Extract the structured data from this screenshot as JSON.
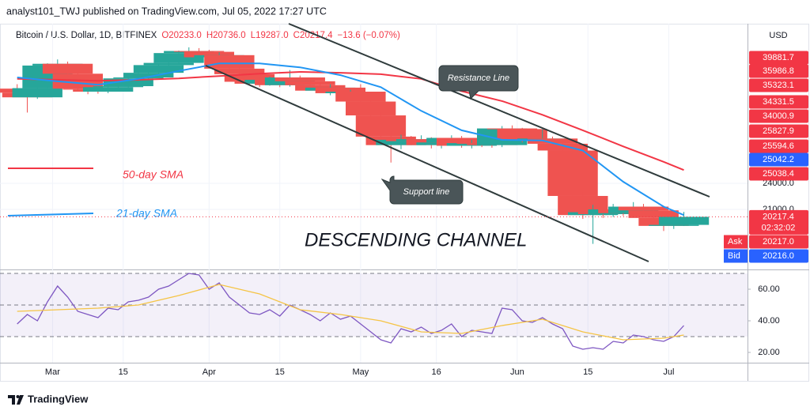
{
  "header": {
    "publisher": "analyst101_TWJ published on TradingView.com, Jul 05, 2022 17:27 UTC"
  },
  "chart_data": [
    {
      "type": "candlestick",
      "title": "Bitcoin / U.S. Dollar, 1D, BITFINEX",
      "ohlc_legend": [
        "O20233.0",
        "H20736.0",
        "L19287.0",
        "C20217.4",
        "−13.6 (−0.07%)"
      ],
      "ylabel": "USD",
      "log_scale": true,
      "xlim": [
        -1.7,
        72.3
      ],
      "ylim": [
        15500,
        54400
      ],
      "yticks": [
        {
          "value": 24000,
          "label": "24000.0"
        },
        {
          "value": 21000,
          "label": "21000.0"
        }
      ],
      "up_color": "#26a69a",
      "down_color": "#ef5350",
      "open": [
        39000,
        38200,
        37300,
        39100,
        43900,
        44300,
        42100,
        39000,
        38800,
        38400,
        39300,
        39500,
        41100,
        41300,
        42300,
        44000,
        44500,
        46800,
        47300,
        47100,
        45800,
        46300,
        43200,
        42000,
        40400,
        40000,
        40800,
        39700,
        41300,
        40500,
        39700,
        38600,
        39200,
        38100,
        38400,
        36500,
        34000,
        30500,
        29200,
        30000,
        29800,
        30100,
        29200,
        29600,
        30300,
        29100,
        29500,
        29400,
        29200,
        31800,
        31700,
        30100,
        29900,
        30200,
        29400,
        28400,
        22500,
        20400,
        20700,
        20500,
        21000,
        20600,
        21300,
        20900,
        20100,
        19300,
        19400
      ],
      "high": [
        39900,
        38900,
        39800,
        44400,
        45300,
        44800,
        42500,
        39500,
        39700,
        40000,
        40200,
        41600,
        42400,
        42800,
        44300,
        44900,
        47400,
        48200,
        48000,
        47600,
        47000,
        46700,
        43500,
        42400,
        41500,
        41500,
        41300,
        42900,
        41700,
        40900,
        40100,
        39900,
        39500,
        38800,
        39900,
        36800,
        34500,
        31300,
        30800,
        30600,
        30700,
        30400,
        30200,
        30700,
        30600,
        30000,
        29900,
        29800,
        32200,
        32300,
        31900,
        30600,
        31700,
        30500,
        30000,
        28800,
        23000,
        21500,
        21100,
        21600,
        21300,
        21800,
        21600,
        21200,
        20300,
        20200,
        20736
      ],
      "low": [
        37500,
        34500,
        37000,
        38700,
        43400,
        41500,
        38600,
        37900,
        38000,
        38100,
        38700,
        38900,
        40600,
        40900,
        41900,
        43600,
        44200,
        46500,
        46700,
        45200,
        45400,
        42800,
        41600,
        39800,
        39300,
        39600,
        39300,
        39400,
        40000,
        39200,
        38200,
        37700,
        37600,
        37600,
        35800,
        33700,
        29800,
        26700,
        28600,
        29200,
        29400,
        28700,
        28700,
        29300,
        28800,
        28700,
        28900,
        28800,
        28900,
        31300,
        29600,
        29500,
        29500,
        28900,
        27800,
        22100,
        20000,
        17600,
        20100,
        20200,
        20300,
        20400,
        20500,
        19800,
        18800,
        19000,
        19287
      ],
      "close": [
        38200,
        37300,
        39100,
        43900,
        44300,
        42100,
        39000,
        38800,
        38400,
        39300,
        39500,
        41100,
        41300,
        42300,
        44000,
        44500,
        46800,
        47300,
        47100,
        45800,
        46300,
        43200,
        42000,
        40400,
        40000,
        40800,
        39700,
        41300,
        40500,
        39700,
        38600,
        39200,
        38100,
        38400,
        36500,
        34000,
        30500,
        29200,
        30000,
        29800,
        30100,
        29200,
        29600,
        30300,
        29100,
        29500,
        29400,
        29200,
        31800,
        31700,
        30100,
        29900,
        30200,
        29400,
        28400,
        22500,
        20400,
        20700,
        20500,
        21000,
        20600,
        21300,
        20900,
        20100,
        19300,
        19400,
        20217.4
      ],
      "series": [
        {
          "name": "50-day SMA",
          "color": "#f23645",
          "x": [
            0,
            4,
            8,
            12,
            16,
            20,
            24,
            28,
            32,
            36,
            40,
            44,
            48,
            52,
            56,
            60,
            64,
            66
          ],
          "values": [
            41000,
            40800,
            40600,
            40800,
            41100,
            41600,
            42100,
            42500,
            42300,
            42000,
            41000,
            38500,
            36600,
            34100,
            31500,
            29000,
            26800,
            25700
          ]
        },
        {
          "name": "21-day SMA",
          "color": "#2196f3",
          "x": [
            0,
            4,
            8,
            12,
            16,
            20,
            24,
            28,
            32,
            36,
            40,
            44,
            48,
            52,
            56,
            60,
            64,
            66
          ],
          "values": [
            41300,
            40500,
            39800,
            41000,
            42700,
            44400,
            44400,
            43500,
            41800,
            39300,
            34800,
            31500,
            30000,
            29900,
            28400,
            24200,
            21300,
            20400
          ]
        }
      ],
      "price_tags": [
        {
          "label": "39881.7",
          "color": "#f23645"
        },
        {
          "label": "35986.8",
          "color": "#f23645"
        },
        {
          "label": "35323.1",
          "color": "#f23645"
        },
        {
          "label": "34331.5",
          "color": "#f23645"
        },
        {
          "label": "34000.9",
          "color": "#f23645"
        },
        {
          "label": "25827.9",
          "color": "#f23645"
        },
        {
          "label": "25594.6",
          "color": "#f23645"
        },
        {
          "label": "25042.2",
          "color": "#2962ff"
        },
        {
          "label": "25038.4",
          "color": "#f23645"
        }
      ],
      "last_price": {
        "value": 20217.4,
        "label": "20217.4",
        "countdown": "02:32:02",
        "color": "#f23645"
      },
      "ask": {
        "name": "Ask",
        "label": "20217.0",
        "color": "#f23645"
      },
      "bid": {
        "name": "Bid",
        "label": "20216.0",
        "color": "#2962ff"
      },
      "annotations": [
        "Resistance Line",
        "Support line",
        "DESCENDING CHANNEL"
      ]
    },
    {
      "type": "line",
      "xlim": [
        -1.7,
        72.3
      ],
      "ylim": [
        14,
        70.5
      ],
      "yticks": [
        {
          "value": 60,
          "label": "60.00"
        },
        {
          "value": 40,
          "label": "40.00"
        },
        {
          "value": 20,
          "label": "20.00"
        }
      ],
      "levels": [
        30,
        50,
        70
      ],
      "band_color": "#7e57c2",
      "xticks": [
        {
          "value": 3.5,
          "label": "Mar"
        },
        {
          "value": 10.5,
          "label": "15"
        },
        {
          "value": 19,
          "label": "Apr"
        },
        {
          "value": 26,
          "label": "15"
        },
        {
          "value": 34,
          "label": "May"
        },
        {
          "value": 41.5,
          "label": "16"
        },
        {
          "value": 49.5,
          "label": "Jun"
        },
        {
          "value": 56.5,
          "label": "15"
        },
        {
          "value": 64.5,
          "label": "Jul"
        }
      ],
      "series": [
        {
          "color": "#7e57c2",
          "values": [
            38,
            44,
            40,
            52,
            62,
            55,
            46,
            44,
            42,
            48,
            47,
            52,
            53,
            55,
            60,
            62,
            66,
            70,
            69,
            60,
            64,
            55,
            50,
            45,
            44,
            47,
            43,
            50,
            47,
            44,
            40,
            45,
            41,
            43,
            38,
            33,
            28,
            26,
            35,
            33,
            36,
            32,
            34,
            38,
            30,
            34,
            33,
            32,
            48,
            47,
            40,
            39,
            42,
            38,
            35,
            24,
            22,
            23,
            22,
            27,
            26,
            31,
            30,
            28,
            27,
            30,
            37
          ]
        },
        {
          "color": "#f5c445",
          "x": [
            0,
            4,
            8,
            12,
            16,
            20,
            24,
            28,
            32,
            36,
            40,
            44,
            48,
            52,
            56,
            60,
            64,
            66
          ],
          "values": [
            46,
            47,
            48,
            50,
            56,
            63,
            57,
            47,
            44,
            40,
            33,
            32,
            37,
            41,
            33,
            28,
            29,
            31
          ]
        }
      ]
    }
  ],
  "footer": {
    "brand": "TradingView"
  }
}
